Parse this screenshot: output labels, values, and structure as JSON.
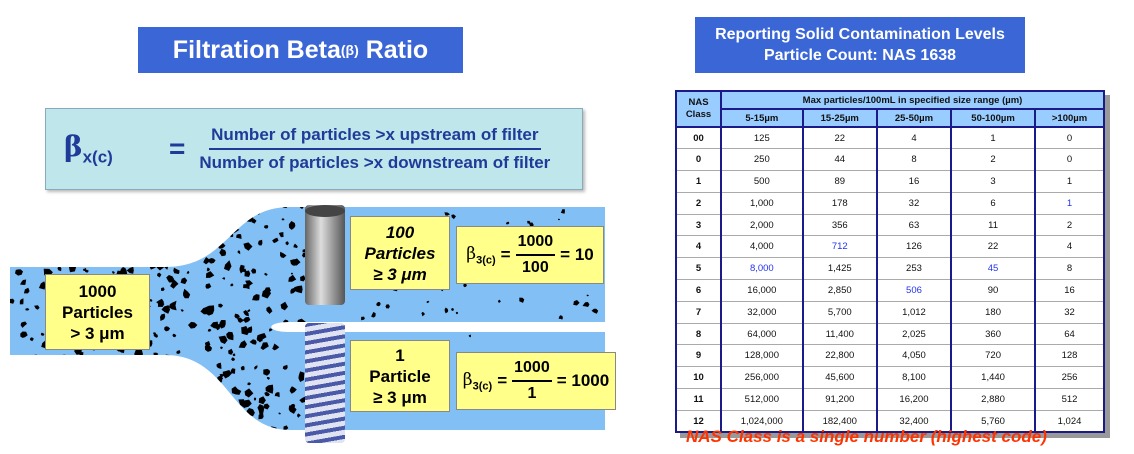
{
  "left": {
    "title": "Filtration Beta",
    "title_symbol": "(β)",
    "title_end": "Ratio",
    "formula": {
      "lhs": "β",
      "lhs_sub": "x(c)",
      "equals": "=",
      "numerator": "Number of particles >x upstream of filter",
      "denominator": "Number of particles >x downstream of filter"
    },
    "upstream": {
      "lines": [
        "1000",
        "Particles",
        "> 3 μm"
      ]
    },
    "filter_a": {
      "lines": [
        "100",
        "Particles",
        "≥ 3 μm"
      ],
      "beta": "β",
      "beta_sub": "3(c)",
      "eq": "=",
      "numerator": "1000",
      "denominator": "100",
      "result": "= 10"
    },
    "filter_b": {
      "lines": [
        "1",
        "Particle",
        "≥ 3 μm"
      ],
      "beta": "β",
      "beta_sub": "3(c)",
      "eq": "=",
      "numerator": "1000",
      "denominator": "1",
      "result": "= 1000"
    },
    "colors": {
      "fluid": "#82bff5",
      "box": "#ffff8a",
      "title": "#3b66d6"
    }
  },
  "right": {
    "title_line1": "Reporting Solid Contamination Levels",
    "title_line2": "Particle Count: NAS 1638",
    "table": {
      "class_header": "NAS Class",
      "group_header": "Max particles/100mL in specified size range (µm)",
      "columns": [
        "5-15µm",
        "15-25µm",
        "25-50µm",
        "50-100µm",
        ">100µm"
      ],
      "rows": [
        {
          "cls": "00",
          "v": [
            "125",
            "22",
            "4",
            "1",
            "0"
          ],
          "hl": []
        },
        {
          "cls": "0",
          "v": [
            "250",
            "44",
            "8",
            "2",
            "0"
          ],
          "hl": []
        },
        {
          "cls": "1",
          "v": [
            "500",
            "89",
            "16",
            "3",
            "1"
          ],
          "hl": []
        },
        {
          "cls": "2",
          "v": [
            "1,000",
            "178",
            "32",
            "6",
            "1"
          ],
          "hl": [
            4
          ]
        },
        {
          "cls": "3",
          "v": [
            "2,000",
            "356",
            "63",
            "11",
            "2"
          ],
          "hl": []
        },
        {
          "cls": "4",
          "v": [
            "4,000",
            "712",
            "126",
            "22",
            "4"
          ],
          "hl": [
            1
          ]
        },
        {
          "cls": "5",
          "v": [
            "8,000",
            "1,425",
            "253",
            "45",
            "8"
          ],
          "hl": [
            0,
            3
          ]
        },
        {
          "cls": "6",
          "v": [
            "16,000",
            "2,850",
            "506",
            "90",
            "16"
          ],
          "hl": [
            2
          ]
        },
        {
          "cls": "7",
          "v": [
            "32,000",
            "5,700",
            "1,012",
            "180",
            "32"
          ],
          "hl": []
        },
        {
          "cls": "8",
          "v": [
            "64,000",
            "11,400",
            "2,025",
            "360",
            "64"
          ],
          "hl": []
        },
        {
          "cls": "9",
          "v": [
            "128,000",
            "22,800",
            "4,050",
            "720",
            "128"
          ],
          "hl": []
        },
        {
          "cls": "10",
          "v": [
            "256,000",
            "45,600",
            "8,100",
            "1,440",
            "256"
          ],
          "hl": []
        },
        {
          "cls": "11",
          "v": [
            "512,000",
            "91,200",
            "16,200",
            "2,880",
            "512"
          ],
          "hl": []
        },
        {
          "cls": "12",
          "v": [
            "1,024,000",
            "182,400",
            "32,400",
            "5,760",
            "1,024"
          ],
          "hl": []
        }
      ]
    },
    "footnote": "NAS Class is a single number (highest code)"
  }
}
